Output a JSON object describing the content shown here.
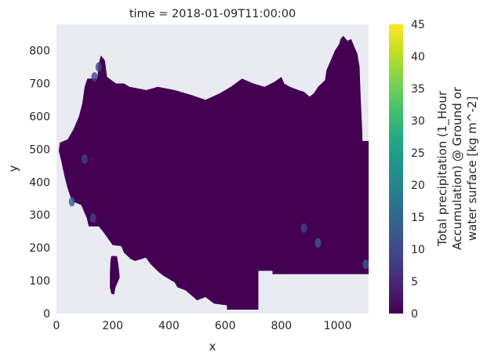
{
  "chart_data": {
    "type": "heatmap",
    "title": "time = 2018-01-09T11:00:00",
    "xlabel": "x",
    "ylabel": "y",
    "xlim": [
      0,
      1110
    ],
    "ylim": [
      0,
      880
    ],
    "x_ticks": [
      0,
      200,
      400,
      600,
      800,
      1000
    ],
    "y_ticks": [
      0,
      100,
      200,
      300,
      400,
      500,
      600,
      700,
      800
    ],
    "grid": false,
    "colormap": "viridis",
    "colorbar": {
      "label_lines": [
        "Total precipitation (1_Hour",
        "Accumulation) @ Ground or",
        "water surface [kg m^-2]"
      ],
      "range": [
        0,
        45
      ],
      "ticks": [
        0,
        5,
        10,
        15,
        20,
        25,
        30,
        35,
        40,
        45
      ]
    },
    "background_color": "#eaeaf2",
    "region_outline": [
      [
        12,
        520
      ],
      [
        40,
        530
      ],
      [
        60,
        560
      ],
      [
        80,
        600
      ],
      [
        92,
        640
      ],
      [
        100,
        690
      ],
      [
        110,
        715
      ],
      [
        145,
        715
      ],
      [
        150,
        760
      ],
      [
        158,
        785
      ],
      [
        172,
        770
      ],
      [
        180,
        720
      ],
      [
        212,
        700
      ],
      [
        240,
        700
      ],
      [
        260,
        690
      ],
      [
        320,
        680
      ],
      [
        360,
        690
      ],
      [
        420,
        680
      ],
      [
        480,
        665
      ],
      [
        530,
        650
      ],
      [
        580,
        670
      ],
      [
        620,
        690
      ],
      [
        660,
        715
      ],
      [
        700,
        700
      ],
      [
        740,
        690
      ],
      [
        775,
        705
      ],
      [
        800,
        720
      ],
      [
        810,
        700
      ],
      [
        830,
        690
      ],
      [
        860,
        680
      ],
      [
        880,
        675
      ],
      [
        900,
        660
      ],
      [
        915,
        670
      ],
      [
        930,
        690
      ],
      [
        955,
        710
      ],
      [
        960,
        740
      ],
      [
        975,
        770
      ],
      [
        990,
        800
      ],
      [
        1005,
        820
      ],
      [
        1010,
        835
      ],
      [
        1020,
        845
      ],
      [
        1035,
        830
      ],
      [
        1048,
        835
      ],
      [
        1060,
        810
      ],
      [
        1070,
        790
      ],
      [
        1078,
        750
      ],
      [
        1080,
        700
      ],
      [
        1082,
        650
      ],
      [
        1085,
        600
      ],
      [
        1087,
        560
      ],
      [
        1088,
        525
      ],
      [
        1110,
        525
      ],
      [
        1110,
        120
      ],
      [
        768,
        120
      ],
      [
        768,
        130
      ],
      [
        718,
        130
      ],
      [
        718,
        12
      ],
      [
        606,
        12
      ],
      [
        606,
        25
      ],
      [
        560,
        30
      ],
      [
        530,
        50
      ],
      [
        500,
        40
      ],
      [
        480,
        55
      ],
      [
        460,
        70
      ],
      [
        430,
        80
      ],
      [
        420,
        95
      ],
      [
        400,
        105
      ],
      [
        380,
        115
      ],
      [
        365,
        125
      ],
      [
        335,
        150
      ],
      [
        318,
        170
      ],
      [
        300,
        165
      ],
      [
        280,
        160
      ],
      [
        265,
        165
      ],
      [
        240,
        185
      ],
      [
        230,
        205
      ],
      [
        200,
        208
      ],
      [
        190,
        220
      ],
      [
        165,
        250
      ],
      [
        150,
        265
      ],
      [
        115,
        265
      ],
      [
        108,
        290
      ],
      [
        88,
        330
      ],
      [
        60,
        340
      ],
      [
        52,
        350
      ],
      [
        40,
        380
      ],
      [
        28,
        420
      ],
      [
        18,
        460
      ],
      [
        8,
        495
      ]
    ],
    "island_outline": [
      [
        195,
        175
      ],
      [
        215,
        175
      ],
      [
        220,
        150
      ],
      [
        225,
        110
      ],
      [
        210,
        80
      ],
      [
        205,
        58
      ],
      [
        195,
        60
      ],
      [
        190,
        80
      ],
      [
        190,
        120
      ],
      [
        192,
        160
      ]
    ],
    "high_precip_spots": [
      {
        "x": 55,
        "y": 340,
        "value": 14
      },
      {
        "x": 100,
        "y": 470,
        "value": 10
      },
      {
        "x": 130,
        "y": 290,
        "value": 11
      },
      {
        "x": 880,
        "y": 260,
        "value": 9
      },
      {
        "x": 930,
        "y": 215,
        "value": 12
      },
      {
        "x": 1100,
        "y": 150,
        "value": 15
      },
      {
        "x": 135,
        "y": 720,
        "value": 7
      },
      {
        "x": 150,
        "y": 750,
        "value": 8
      }
    ]
  }
}
